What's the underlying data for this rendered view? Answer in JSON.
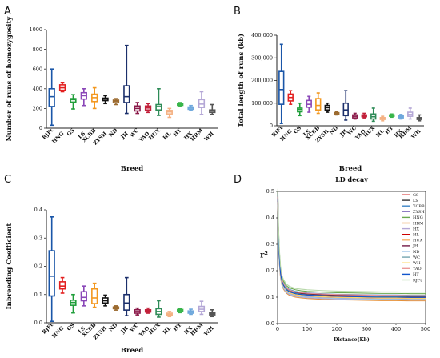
{
  "chart_data": [
    {
      "panel": "A",
      "type": "boxplot",
      "ylabel": "Number of runs of homozygosity",
      "xlabel": "Breed",
      "ylim": [
        0,
        1000
      ],
      "yticks": [
        "0",
        "200",
        "400",
        "600",
        "800",
        "1000"
      ],
      "categories": [
        "RJFt",
        "HNG",
        "GS",
        "LS",
        "XCBB",
        "ZYSH",
        "ND",
        "JH",
        "WC",
        "YAO",
        "HUX",
        "HL",
        "HT",
        "HX",
        "HBM",
        "WH"
      ],
      "boxes": [
        {
          "category": "RJFt",
          "color": "#1a56a8",
          "min": 30,
          "q1": 220,
          "median": 320,
          "q3": 400,
          "max": 600
        },
        {
          "category": "HNG",
          "color": "#e32020",
          "min": 370,
          "q1": 385,
          "median": 410,
          "q3": 440,
          "max": 460
        },
        {
          "category": "GS",
          "color": "#1f9e3a",
          "min": 195,
          "q1": 265,
          "median": 290,
          "q3": 300,
          "max": 340
        },
        {
          "category": "LS",
          "color": "#8a47b8",
          "min": 230,
          "q1": 295,
          "median": 330,
          "q3": 360,
          "max": 400
        },
        {
          "category": "XCBB",
          "color": "#f39820",
          "min": 200,
          "q1": 270,
          "median": 310,
          "q3": 345,
          "max": 410
        },
        {
          "category": "ZYSH",
          "color": "#111111",
          "min": 250,
          "q1": 280,
          "median": 295,
          "q3": 305,
          "max": 330
        },
        {
          "category": "ND",
          "color": "#9c6b30",
          "min": 240,
          "q1": 260,
          "median": 275,
          "q3": 285,
          "max": 300
        },
        {
          "category": "JH",
          "color": "#1b2f6b",
          "min": 150,
          "q1": 260,
          "median": 320,
          "q3": 430,
          "max": 840
        },
        {
          "category": "WC",
          "color": "#8b1a4a",
          "min": 150,
          "q1": 175,
          "median": 200,
          "q3": 225,
          "max": 260
        },
        {
          "category": "YAO",
          "color": "#c2203a",
          "min": 160,
          "q1": 185,
          "median": 205,
          "q3": 225,
          "max": 250
        },
        {
          "category": "HUX",
          "color": "#2e8b57",
          "min": 130,
          "q1": 185,
          "median": 220,
          "q3": 240,
          "max": 400
        },
        {
          "category": "HL",
          "color": "#f4b183",
          "min": 110,
          "q1": 145,
          "median": 165,
          "q3": 180,
          "max": 200
        },
        {
          "category": "HT",
          "color": "#39b54a",
          "min": 220,
          "q1": 232,
          "median": 240,
          "q3": 250,
          "max": 260
        },
        {
          "category": "HX",
          "color": "#6fa8dc",
          "min": 180,
          "q1": 192,
          "median": 205,
          "q3": 215,
          "max": 230
        },
        {
          "category": "HBM",
          "color": "#b4a7d6",
          "min": 140,
          "q1": 210,
          "median": 245,
          "q3": 290,
          "max": 370
        },
        {
          "category": "WH",
          "color": "#555555",
          "min": 140,
          "q1": 160,
          "median": 175,
          "q3": 185,
          "max": 240
        }
      ]
    },
    {
      "panel": "B",
      "type": "boxplot",
      "ylabel": "Total length of runs (kb)",
      "xlabel": "Breed",
      "ylim": [
        0,
        400000
      ],
      "yticks": [
        "0",
        "100,000",
        "200,000",
        "300,000",
        "400,000"
      ],
      "categories": [
        "RJFt",
        "HNG",
        "GS",
        "LS",
        "XCBB",
        "ZYSH",
        "ND",
        "JH",
        "WC",
        "YAO",
        "HUX",
        "HL",
        "HT",
        "HX",
        "HBM",
        "WH"
      ],
      "boxes": [
        {
          "category": "RJFt",
          "color": "#1a56a8",
          "min": 10000,
          "q1": 95000,
          "median": 160000,
          "q3": 240000,
          "max": 360000
        },
        {
          "category": "HNG",
          "color": "#e32020",
          "min": 95000,
          "q1": 110000,
          "median": 125000,
          "q3": 140000,
          "max": 155000
        },
        {
          "category": "GS",
          "color": "#1f9e3a",
          "min": 45000,
          "q1": 62000,
          "median": 72000,
          "q3": 78000,
          "max": 100000
        },
        {
          "category": "LS",
          "color": "#8a47b8",
          "min": 60000,
          "q1": 82000,
          "median": 95000,
          "q3": 112000,
          "max": 130000
        },
        {
          "category": "XCBB",
          "color": "#f39820",
          "min": 55000,
          "q1": 70000,
          "median": 90000,
          "q3": 120000,
          "max": 145000
        },
        {
          "category": "ZYSH",
          "color": "#111111",
          "min": 60000,
          "q1": 70000,
          "median": 80000,
          "q3": 90000,
          "max": 100000
        },
        {
          "category": "ND",
          "color": "#9c6b30",
          "min": 48000,
          "q1": 52000,
          "median": 55000,
          "q3": 58000,
          "max": 62000
        },
        {
          "category": "JH",
          "color": "#1b2f6b",
          "min": 25000,
          "q1": 45000,
          "median": 70000,
          "q3": 100000,
          "max": 155000
        },
        {
          "category": "WC",
          "color": "#8b1a4a",
          "min": 30000,
          "q1": 35000,
          "median": 42000,
          "q3": 48000,
          "max": 55000
        },
        {
          "category": "YAO",
          "color": "#c2203a",
          "min": 35000,
          "q1": 40000,
          "median": 44000,
          "q3": 48000,
          "max": 55000
        },
        {
          "category": "HUX",
          "color": "#2e8b57",
          "min": 20000,
          "q1": 30000,
          "median": 40000,
          "q3": 52000,
          "max": 78000
        },
        {
          "category": "HL",
          "color": "#f4b183",
          "min": 22000,
          "q1": 28000,
          "median": 32000,
          "q3": 36000,
          "max": 42000
        },
        {
          "category": "HT",
          "color": "#39b54a",
          "min": 38000,
          "q1": 42000,
          "median": 45000,
          "q3": 48000,
          "max": 52000
        },
        {
          "category": "HX",
          "color": "#6fa8dc",
          "min": 30000,
          "q1": 35000,
          "median": 40000,
          "q3": 44000,
          "max": 50000
        },
        {
          "category": "HBM",
          "color": "#b4a7d6",
          "min": 30000,
          "q1": 42000,
          "median": 50000,
          "q3": 60000,
          "max": 78000
        },
        {
          "category": "WH",
          "color": "#555555",
          "min": 22000,
          "q1": 28000,
          "median": 32000,
          "q3": 36000,
          "max": 48000
        }
      ]
    },
    {
      "panel": "C",
      "type": "boxplot",
      "ylabel": "Inbreeding Coefficient",
      "xlabel": "Breed",
      "ylim": [
        0,
        0.4
      ],
      "yticks": [
        "0.0",
        "0.1",
        "0.2",
        "0.3",
        "0.4"
      ],
      "categories": [
        "RJFt",
        "HNG",
        "GS",
        "LS",
        "XCBB",
        "ZYSH",
        "ND",
        "JH",
        "WC",
        "YAO",
        "HUX",
        "HL",
        "HT",
        "HX",
        "HBM",
        "WH"
      ],
      "boxes": [
        {
          "category": "RJFt",
          "color": "#1a56a8",
          "min": 0.005,
          "q1": 0.095,
          "median": 0.165,
          "q3": 0.255,
          "max": 0.375
        },
        {
          "category": "HNG",
          "color": "#e32020",
          "min": 0.105,
          "q1": 0.12,
          "median": 0.13,
          "q3": 0.145,
          "max": 0.16
        },
        {
          "category": "GS",
          "color": "#1f9e3a",
          "min": 0.035,
          "q1": 0.062,
          "median": 0.072,
          "q3": 0.08,
          "max": 0.1
        },
        {
          "category": "LS",
          "color": "#8a47b8",
          "min": 0.06,
          "q1": 0.078,
          "median": 0.09,
          "q3": 0.11,
          "max": 0.13
        },
        {
          "category": "XCBB",
          "color": "#f39820",
          "min": 0.055,
          "q1": 0.068,
          "median": 0.088,
          "q3": 0.12,
          "max": 0.14
        },
        {
          "category": "ZYSH",
          "color": "#111111",
          "min": 0.06,
          "q1": 0.07,
          "median": 0.078,
          "q3": 0.088,
          "max": 0.098
        },
        {
          "category": "ND",
          "color": "#9c6b30",
          "min": 0.045,
          "q1": 0.05,
          "median": 0.053,
          "q3": 0.056,
          "max": 0.06
        },
        {
          "category": "JH",
          "color": "#1b2f6b",
          "min": 0.025,
          "q1": 0.045,
          "median": 0.07,
          "q3": 0.1,
          "max": 0.16
        },
        {
          "category": "WC",
          "color": "#8b1a4a",
          "min": 0.028,
          "q1": 0.034,
          "median": 0.04,
          "q3": 0.046,
          "max": 0.052
        },
        {
          "category": "YAO",
          "color": "#c2203a",
          "min": 0.034,
          "q1": 0.038,
          "median": 0.042,
          "q3": 0.046,
          "max": 0.052
        },
        {
          "category": "HUX",
          "color": "#2e8b57",
          "min": 0.02,
          "q1": 0.03,
          "median": 0.04,
          "q3": 0.05,
          "max": 0.078
        },
        {
          "category": "HL",
          "color": "#f4b183",
          "min": 0.022,
          "q1": 0.027,
          "median": 0.03,
          "q3": 0.034,
          "max": 0.04
        },
        {
          "category": "HT",
          "color": "#39b54a",
          "min": 0.036,
          "q1": 0.04,
          "median": 0.044,
          "q3": 0.047,
          "max": 0.05
        },
        {
          "category": "HX",
          "color": "#6fa8dc",
          "min": 0.03,
          "q1": 0.034,
          "median": 0.038,
          "q3": 0.042,
          "max": 0.048
        },
        {
          "category": "HBM",
          "color": "#b4a7d6",
          "min": 0.03,
          "q1": 0.04,
          "median": 0.048,
          "q3": 0.058,
          "max": 0.076
        },
        {
          "category": "WH",
          "color": "#555555",
          "min": 0.022,
          "q1": 0.028,
          "median": 0.032,
          "q3": 0.036,
          "max": 0.046
        }
      ]
    },
    {
      "panel": "D",
      "type": "line",
      "title": "LD decay",
      "xlabel": "Distance(Kb)",
      "ylabel": "r²",
      "xlim": [
        0,
        500
      ],
      "ylim": [
        0,
        0.5
      ],
      "xticks": [
        "0",
        "100",
        "200",
        "300",
        "400",
        "500"
      ],
      "yticks": [
        "0.0",
        "0.1",
        "0.2",
        "0.3",
        "0.4",
        "0.5"
      ],
      "x": [
        1,
        3,
        6,
        10,
        15,
        20,
        30,
        40,
        60,
        80,
        100,
        150,
        200,
        250,
        300,
        350,
        400,
        450,
        500
      ],
      "legend_position": "top-right",
      "series": [
        {
          "name": "GS",
          "color": "#e06666",
          "values": [
            0.48,
            0.34,
            0.25,
            0.195,
            0.163,
            0.148,
            0.132,
            0.124,
            0.117,
            0.113,
            0.111,
            0.108,
            0.106,
            0.105,
            0.104,
            0.103,
            0.103,
            0.102,
            0.102
          ]
        },
        {
          "name": "LS",
          "color": "#333333",
          "values": [
            0.47,
            0.33,
            0.245,
            0.19,
            0.16,
            0.146,
            0.13,
            0.122,
            0.115,
            0.112,
            0.11,
            0.107,
            0.105,
            0.104,
            0.103,
            0.102,
            0.102,
            0.101,
            0.101
          ]
        },
        {
          "name": "XCBB",
          "color": "#3d85c6",
          "values": [
            0.49,
            0.35,
            0.26,
            0.2,
            0.168,
            0.153,
            0.137,
            0.129,
            0.122,
            0.118,
            0.116,
            0.113,
            0.111,
            0.11,
            0.109,
            0.108,
            0.108,
            0.107,
            0.107
          ]
        },
        {
          "name": "ZYSH",
          "color": "#8e7cc3",
          "values": [
            0.46,
            0.32,
            0.235,
            0.18,
            0.15,
            0.136,
            0.121,
            0.113,
            0.106,
            0.103,
            0.101,
            0.098,
            0.096,
            0.095,
            0.094,
            0.093,
            0.093,
            0.092,
            0.092
          ]
        },
        {
          "name": "HNG",
          "color": "#6aa84f",
          "values": [
            0.5,
            0.36,
            0.27,
            0.208,
            0.175,
            0.16,
            0.143,
            0.135,
            0.128,
            0.124,
            0.122,
            0.119,
            0.117,
            0.116,
            0.115,
            0.114,
            0.114,
            0.113,
            0.113
          ]
        },
        {
          "name": "HBM",
          "color": "#e69138",
          "values": [
            0.44,
            0.31,
            0.225,
            0.172,
            0.143,
            0.13,
            0.115,
            0.107,
            0.1,
            0.097,
            0.095,
            0.092,
            0.09,
            0.089,
            0.088,
            0.087,
            0.087,
            0.086,
            0.086
          ]
        },
        {
          "name": "HX",
          "color": "#b4a7d6",
          "values": [
            0.45,
            0.315,
            0.23,
            0.176,
            0.147,
            0.133,
            0.118,
            0.11,
            0.103,
            0.1,
            0.098,
            0.095,
            0.093,
            0.092,
            0.091,
            0.09,
            0.09,
            0.089,
            0.089
          ]
        },
        {
          "name": "HL",
          "color": "#cc0000",
          "values": [
            0.47,
            0.33,
            0.243,
            0.186,
            0.156,
            0.142,
            0.126,
            0.118,
            0.111,
            0.108,
            0.106,
            0.103,
            0.101,
            0.1,
            0.099,
            0.098,
            0.098,
            0.097,
            0.097
          ]
        },
        {
          "name": "HUX",
          "color": "#f6b26b",
          "values": [
            0.46,
            0.325,
            0.24,
            0.184,
            0.154,
            0.14,
            0.124,
            0.116,
            0.109,
            0.106,
            0.104,
            0.101,
            0.099,
            0.098,
            0.097,
            0.096,
            0.096,
            0.095,
            0.095
          ]
        },
        {
          "name": "JH",
          "color": "#741b47",
          "values": [
            0.48,
            0.34,
            0.252,
            0.194,
            0.163,
            0.149,
            0.133,
            0.125,
            0.118,
            0.115,
            0.113,
            0.11,
            0.108,
            0.107,
            0.106,
            0.105,
            0.105,
            0.104,
            0.104
          ]
        },
        {
          "name": "ND",
          "color": "#9fc5e8",
          "values": [
            0.45,
            0.318,
            0.234,
            0.179,
            0.15,
            0.136,
            0.12,
            0.112,
            0.105,
            0.102,
            0.1,
            0.097,
            0.095,
            0.094,
            0.093,
            0.092,
            0.092,
            0.091,
            0.091
          ]
        },
        {
          "name": "WC",
          "color": "#76a5af",
          "values": [
            0.47,
            0.335,
            0.248,
            0.191,
            0.16,
            0.146,
            0.13,
            0.122,
            0.115,
            0.111,
            0.109,
            0.106,
            0.104,
            0.103,
            0.102,
            0.101,
            0.101,
            0.1,
            0.1
          ]
        },
        {
          "name": "WH",
          "color": "#ffd966",
          "values": [
            0.46,
            0.326,
            0.241,
            0.185,
            0.155,
            0.141,
            0.125,
            0.117,
            0.11,
            0.107,
            0.105,
            0.102,
            0.1,
            0.099,
            0.098,
            0.097,
            0.097,
            0.096,
            0.096
          ]
        },
        {
          "name": "YAO",
          "color": "#ea9999",
          "values": [
            0.48,
            0.345,
            0.256,
            0.197,
            0.166,
            0.151,
            0.135,
            0.127,
            0.12,
            0.117,
            0.115,
            0.112,
            0.11,
            0.109,
            0.108,
            0.107,
            0.107,
            0.106,
            0.106
          ]
        },
        {
          "name": "HT",
          "color": "#1155cc",
          "values": [
            0.47,
            0.33,
            0.244,
            0.188,
            0.158,
            0.144,
            0.128,
            0.12,
            0.113,
            0.11,
            0.108,
            0.105,
            0.103,
            0.102,
            0.101,
            0.1,
            0.1,
            0.099,
            0.099
          ]
        },
        {
          "name": "RJFt",
          "color": "#b6d7a8",
          "values": [
            0.51,
            0.37,
            0.28,
            0.215,
            0.182,
            0.166,
            0.149,
            0.141,
            0.133,
            0.13,
            0.128,
            0.125,
            0.123,
            0.122,
            0.121,
            0.12,
            0.12,
            0.119,
            0.119
          ]
        }
      ]
    }
  ]
}
